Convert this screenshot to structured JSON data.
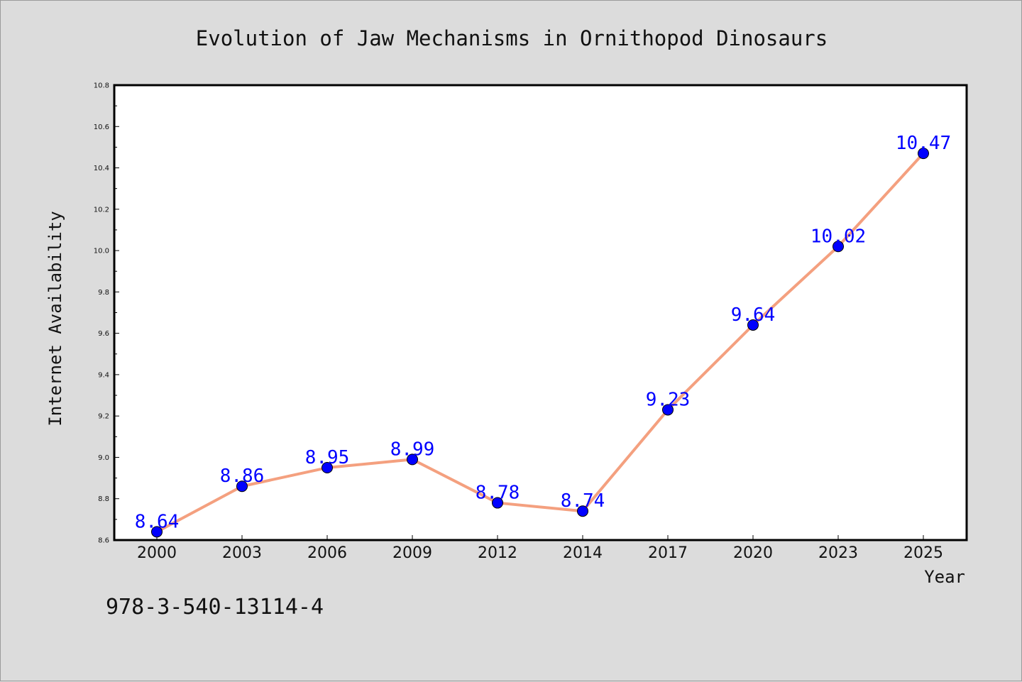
{
  "chart_data": {
    "type": "line",
    "title": "Evolution of Jaw Mechanisms in Ornithopod Dinosaurs",
    "xlabel": "Year",
    "ylabel": "Internet Availability",
    "categories": [
      "2000",
      "2003",
      "2006",
      "2009",
      "2012",
      "2014",
      "2017",
      "2020",
      "2023",
      "2025"
    ],
    "series": [
      {
        "values": [
          8.64,
          8.86,
          8.95,
          8.99,
          8.78,
          8.74,
          9.23,
          9.64,
          10.02,
          10.47
        ],
        "data_labels": [
          "8.64",
          "8.86",
          "8.95",
          "8.99",
          "8.78",
          "8.74",
          "9.23",
          "9.64",
          "10.02",
          "10.47"
        ],
        "line_color": "#f4a07f",
        "marker_color": "#0000ff"
      }
    ],
    "ylim": [
      8.6,
      10.8
    ],
    "yticks": [
      "8.6",
      "8.8",
      "9.0",
      "9.2",
      "9.4",
      "9.6",
      "9.8",
      "10.0",
      "10.2",
      "10.4",
      "10.6",
      "10.8"
    ],
    "grid": false,
    "legend": "none"
  },
  "footer_text": "978-3-540-13114-4",
  "colors": {
    "background": "#dcdcdc",
    "plot_area": "#ffffff"
  }
}
